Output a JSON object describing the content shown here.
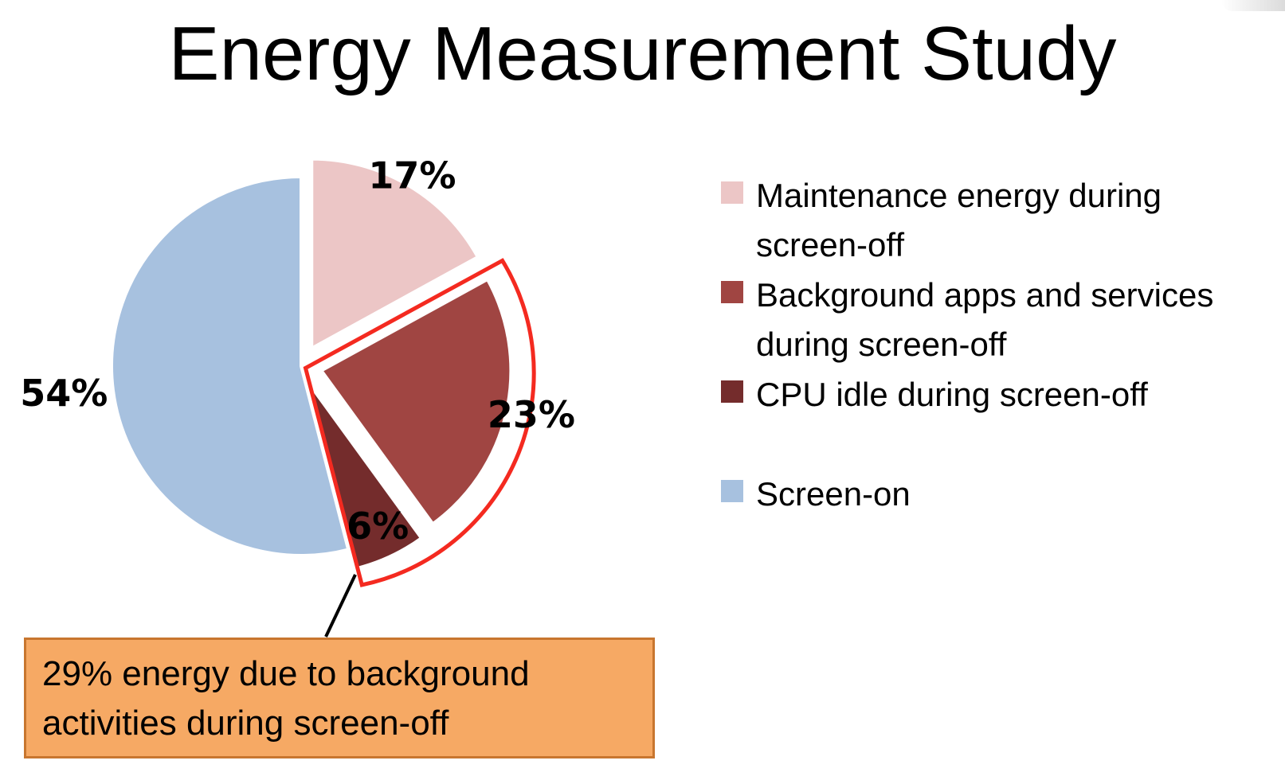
{
  "title": "Energy Measurement Study",
  "chart_data": {
    "type": "pie",
    "categories": [
      "Maintenance energy during screen-off",
      "Background apps and services during screen-off",
      "CPU idle during screen-off",
      "Screen-on"
    ],
    "values": [
      17,
      23,
      6,
      54
    ],
    "labels": [
      "17%",
      "23%",
      "6%",
      "54%"
    ],
    "colors": [
      "#ecc6c6",
      "#a04542",
      "#742c2c",
      "#a7c1df"
    ],
    "exploded": [
      true,
      true,
      true,
      false
    ],
    "highlighted": [
      false,
      true,
      true,
      false
    ],
    "highlight_color": "#f42a20",
    "legend_position": "right"
  },
  "legend": [
    {
      "label": "Maintenance energy during screen-off",
      "color": "#ecc6c6"
    },
    {
      "label": "Background apps and services during screen-off",
      "color": "#a04542"
    },
    {
      "label": "CPU idle during screen-off",
      "color": "#742c2c"
    },
    {
      "label": "Screen-on",
      "color": "#a7c1df"
    }
  ],
  "callout": {
    "text": "29% energy due to background activities during screen-off",
    "background": "#f6a964",
    "border": "#c8762f"
  }
}
